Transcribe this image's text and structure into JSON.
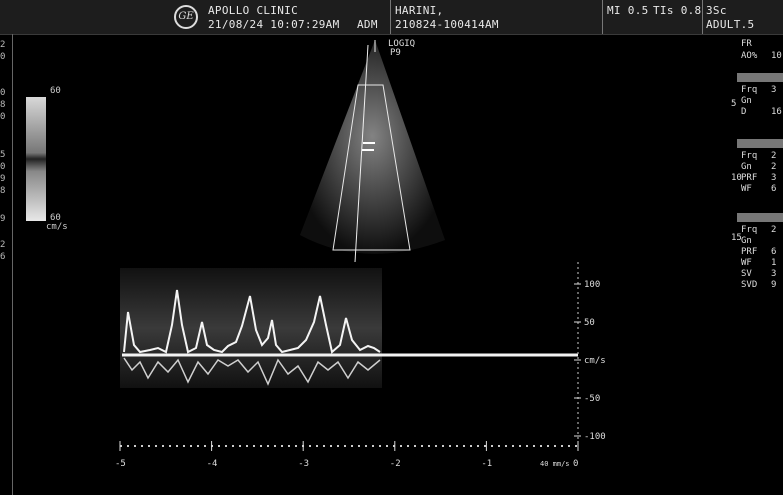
{
  "header": {
    "clinic": "APOLLO CLINIC",
    "datetime": "21/08/24 10:07:29AM",
    "operator": "ADM",
    "patient_name": "HARINI,",
    "patient_id": "210824-100414AM",
    "mi": "MI 0.5",
    "tis": "TIs 0.8",
    "probe": "3Sc",
    "preset": "ADULT.5"
  },
  "left_edge_numbers": [
    "2",
    "0",
    "0",
    "8",
    "0",
    "5",
    "0",
    "9",
    "8",
    "9",
    "2",
    "6"
  ],
  "color_scale": {
    "top": "60",
    "bottom": "60",
    "unit": "cm/s"
  },
  "image_label": {
    "brand": "LOGIQ",
    "code": "P9"
  },
  "params": {
    "fr": "FR",
    "ao": "AO%",
    "ao_val": "10",
    "depth_marks": [
      "5",
      "10",
      "15"
    ],
    "b_section": [
      "Frq",
      "Gn",
      "D"
    ],
    "b_vals": [
      "3",
      "",
      "16"
    ],
    "cf_section": [
      "Frq",
      "Gn",
      "PRF",
      "WF"
    ],
    "cf_vals": [
      "2",
      "2",
      "3",
      "6"
    ],
    "pw_section": [
      "Frq",
      "Gn",
      "PRF",
      "WF",
      "SV",
      "SVD"
    ],
    "pw_vals": [
      "2",
      "",
      "6",
      "1",
      "3",
      "9"
    ]
  },
  "spectral": {
    "y_ticks": [
      "100",
      "50",
      "cm/s",
      "-50",
      "-100"
    ],
    "x_ticks": [
      "-5",
      "-4",
      "-3",
      "-2",
      "-1",
      "0"
    ],
    "sweep": "40 mm/s"
  }
}
